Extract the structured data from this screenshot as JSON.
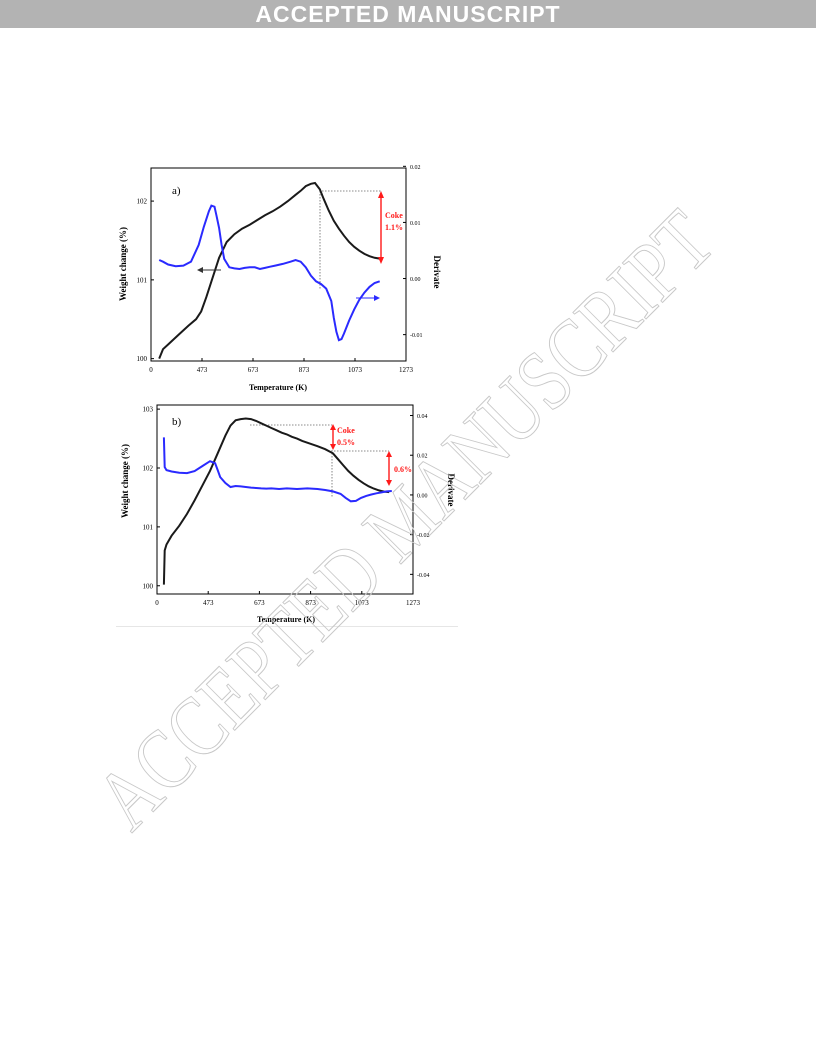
{
  "header": {
    "banner": "ACCEPTED MANUSCRIPT"
  },
  "watermark": {
    "text": "ACCEPTED MANUSCRIPT"
  },
  "colors": {
    "banner_bg": "#b3b3b3",
    "weight_curve": "#1a1a1a",
    "derivative_curve": "#2a2aff",
    "annotation": "#ff1a1a"
  },
  "chart_data": [
    {
      "panel": "a)",
      "type": "line",
      "xlabel": "Temperature (K)",
      "ylabel": "Weight change (%)",
      "y2label": "Derivate",
      "xticks": [
        273,
        473,
        673,
        873,
        1073,
        1273
      ],
      "xlim": [
        273,
        1273
      ],
      "yticks": [
        100,
        101,
        102
      ],
      "ylim": [
        99.97,
        102.42
      ],
      "y2ticks": [
        -0.01,
        0.0,
        0.01,
        0.02
      ],
      "y2lim": [
        -0.0147,
        0.0197
      ],
      "annotation": {
        "line1": "Coke",
        "line2": "1.1%"
      },
      "series": [
        {
          "axis": "left",
          "x": [
            305,
            320,
            340,
            380,
            420,
            450,
            470,
            490,
            510,
            540,
            570,
            600,
            630,
            660,
            690,
            720,
            750,
            780,
            810,
            840,
            860,
            880,
            900,
            916,
            935,
            950,
            970,
            990,
            1010,
            1030,
            1050,
            1070,
            1090,
            1110,
            1130,
            1150,
            1170
          ],
          "y": [
            100,
            100.12,
            100.18,
            100.3,
            100.42,
            100.5,
            100.6,
            100.78,
            100.98,
            101.28,
            101.48,
            101.58,
            101.65,
            101.7,
            101.76,
            101.82,
            101.87,
            101.93,
            102.0,
            102.08,
            102.13,
            102.19,
            102.22,
            102.23,
            102.15,
            102.03,
            101.88,
            101.75,
            101.65,
            101.56,
            101.48,
            101.42,
            101.37,
            101.33,
            101.3,
            101.28,
            101.27
          ]
        },
        {
          "axis": "right",
          "x": [
            305,
            320,
            340,
            370,
            400,
            430,
            460,
            480,
            500,
            510,
            522,
            530,
            540,
            550,
            560,
            580,
            600,
            620,
            640,
            660,
            680,
            700,
            720,
            740,
            760,
            790,
            820,
            840,
            860,
            880,
            900,
            920,
            940,
            960,
            980,
            990,
            1000,
            1010,
            1020,
            1030,
            1050,
            1070,
            1090,
            1110,
            1130,
            1150,
            1170
          ],
          "y": [
            0.0033,
            0.003,
            0.0025,
            0.0022,
            0.0023,
            0.003,
            0.006,
            0.0092,
            0.012,
            0.013,
            0.0128,
            0.0112,
            0.009,
            0.006,
            0.0035,
            0.002,
            0.0018,
            0.0017,
            0.0019,
            0.002,
            0.002,
            0.0017,
            0.0019,
            0.0021,
            0.0023,
            0.0026,
            0.003,
            0.0033,
            0.003,
            0.002,
            0.0005,
            -0.0005,
            -0.001,
            -0.0018,
            -0.004,
            -0.007,
            -0.0095,
            -0.011,
            -0.0108,
            -0.0098,
            -0.0075,
            -0.0055,
            -0.0038,
            -0.0025,
            -0.0015,
            -0.0008,
            -0.0005
          ]
        }
      ]
    },
    {
      "panel": "b)",
      "type": "line",
      "xlabel": "Temperature (K)",
      "ylabel": "Weight change (%)",
      "y2label": "Derivate",
      "xticks": [
        273,
        473,
        673,
        873,
        1073,
        1273
      ],
      "xlim": [
        273,
        1273
      ],
      "yticks": [
        100,
        101,
        102,
        103
      ],
      "ylim": [
        99.86,
        103.07
      ],
      "y2ticks": [
        -0.04,
        -0.02,
        0.0,
        0.02,
        0.04
      ],
      "y2lim": [
        -0.0499,
        0.0453
      ],
      "annotation": {
        "line1": "Coke",
        "line2": "0.5%",
        "line3": "0.6%"
      },
      "series": [
        {
          "axis": "left",
          "x": [
            300,
            303,
            310,
            330,
            360,
            390,
            420,
            450,
            480,
            510,
            540,
            560,
            580,
            600,
            620,
            640,
            660,
            680,
            700,
            720,
            740,
            760,
            780,
            800,
            820,
            840,
            860,
            880,
            900,
            930,
            960,
            980,
            1000,
            1020,
            1040,
            1060,
            1080,
            1100,
            1120,
            1140,
            1160,
            1180
          ],
          "y": [
            100.02,
            100.6,
            100.7,
            100.85,
            101.02,
            101.22,
            101.45,
            101.7,
            101.95,
            102.25,
            102.55,
            102.72,
            102.81,
            102.83,
            102.84,
            102.83,
            102.8,
            102.76,
            102.72,
            102.68,
            102.64,
            102.6,
            102.57,
            102.53,
            102.5,
            102.46,
            102.43,
            102.4,
            102.37,
            102.32,
            102.25,
            102.15,
            102.05,
            101.95,
            101.87,
            101.8,
            101.74,
            101.69,
            101.65,
            101.62,
            101.6,
            101.59
          ]
        },
        {
          "axis": "right",
          "x": [
            300,
            303,
            310,
            330,
            360,
            390,
            420,
            450,
            480,
            500,
            510,
            520,
            540,
            560,
            580,
            600,
            620,
            640,
            660,
            680,
            700,
            720,
            750,
            780,
            820,
            860,
            900,
            930,
            960,
            990,
            1010,
            1030,
            1050,
            1070,
            1090,
            1110,
            1130,
            1150,
            1170,
            1190
          ],
          "y": [
            0.029,
            0.014,
            0.0125,
            0.0118,
            0.0112,
            0.011,
            0.012,
            0.0145,
            0.017,
            0.016,
            0.0125,
            0.009,
            0.006,
            0.004,
            0.0045,
            0.0043,
            0.004,
            0.0037,
            0.0035,
            0.0033,
            0.0032,
            0.0033,
            0.003,
            0.0033,
            0.003,
            0.0033,
            0.003,
            0.0025,
            0.0018,
            0.0005,
            -0.0015,
            -0.0032,
            -0.003,
            -0.0015,
            -0.0005,
            0.0002,
            0.0008,
            0.0013,
            0.0018,
            0.002
          ]
        }
      ]
    }
  ]
}
